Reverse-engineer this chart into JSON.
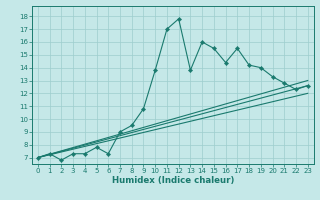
{
  "xlabel": "Humidex (Indice chaleur)",
  "bg_color": "#c5e8e8",
  "grid_color": "#9ecece",
  "line_color": "#1a7a6e",
  "xlim": [
    -0.5,
    23.5
  ],
  "ylim": [
    6.5,
    18.8
  ],
  "xticks": [
    0,
    1,
    2,
    3,
    4,
    5,
    6,
    7,
    8,
    9,
    10,
    11,
    12,
    13,
    14,
    15,
    16,
    17,
    18,
    19,
    20,
    21,
    22,
    23
  ],
  "yticks": [
    7,
    8,
    9,
    10,
    11,
    12,
    13,
    14,
    15,
    16,
    17,
    18
  ],
  "line1_x": [
    0,
    1,
    2,
    3,
    4,
    5,
    6,
    7,
    8,
    9,
    10,
    11,
    12,
    13,
    14,
    15,
    16,
    17,
    18,
    19,
    20,
    21,
    22,
    23
  ],
  "line1_y": [
    7.0,
    7.3,
    6.8,
    7.3,
    7.3,
    7.8,
    7.3,
    9.0,
    9.5,
    10.8,
    13.8,
    17.0,
    17.8,
    13.8,
    16.0,
    15.5,
    14.4,
    15.5,
    14.2,
    14.0,
    13.3,
    12.8,
    12.3,
    12.6
  ],
  "line2_y_end": 13.0,
  "line3_y_end": 12.6,
  "line4_y_end": 12.0,
  "marker_size": 2.2,
  "tick_fontsize": 5.0,
  "xlabel_fontsize": 6.2
}
